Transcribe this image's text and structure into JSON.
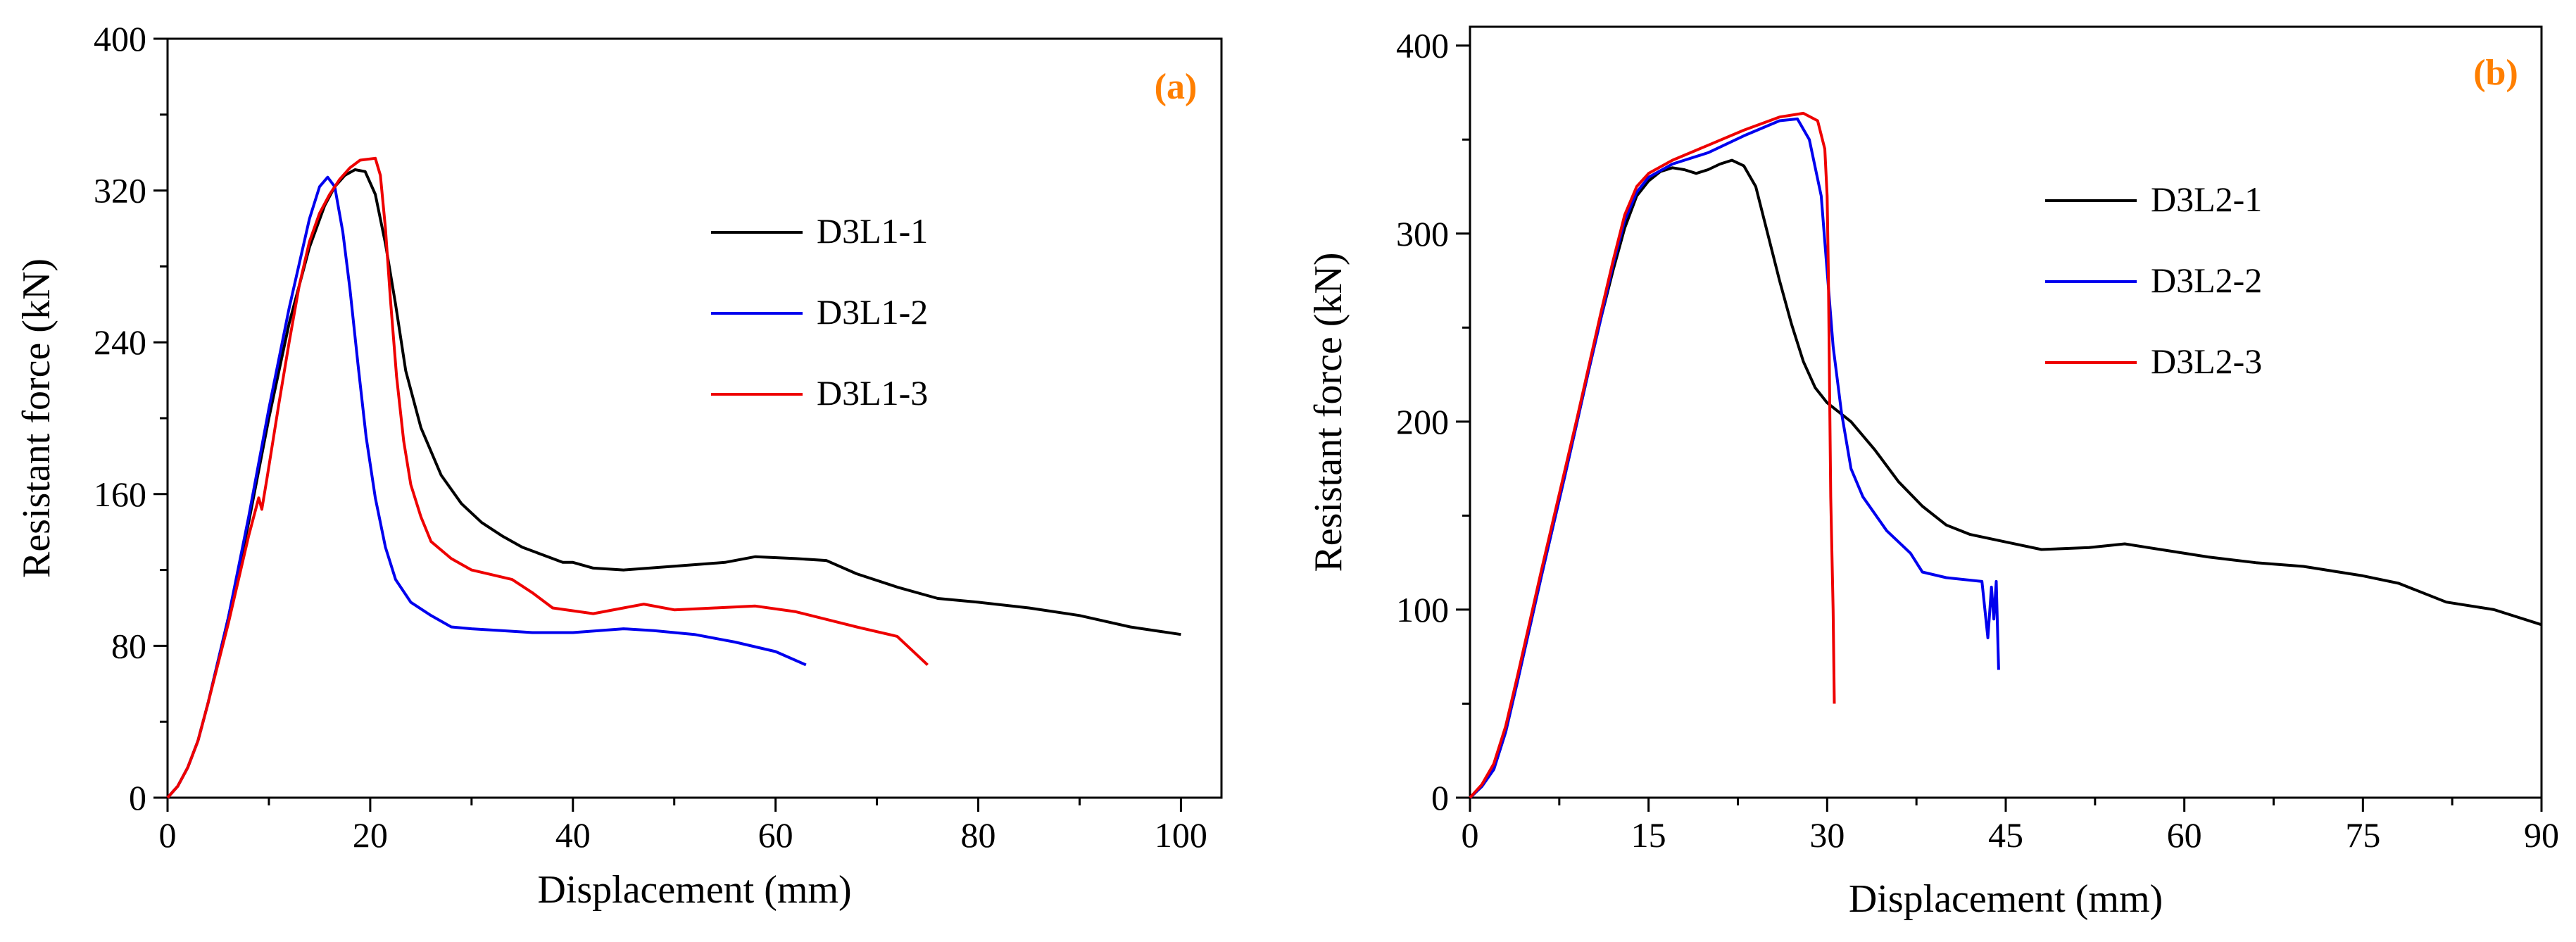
{
  "chart_data": [
    {
      "type": "line",
      "panel_label": "(a)",
      "xlabel": "Displacement (mm)",
      "ylabel": "Resistant force (kN)",
      "xlim": [
        0,
        104
      ],
      "ylim": [
        0,
        400
      ],
      "x_ticks": [
        0,
        20,
        40,
        60,
        80,
        100
      ],
      "y_ticks": [
        0,
        80,
        160,
        240,
        320,
        400
      ],
      "legend_position": "upper-right",
      "series": [
        {
          "name": "D3L1-1",
          "color": "#000000",
          "points": [
            [
              0,
              0
            ],
            [
              1,
              6
            ],
            [
              2,
              16
            ],
            [
              3,
              30
            ],
            [
              4,
              50
            ],
            [
              6,
              95
            ],
            [
              8,
              145
            ],
            [
              10,
              200
            ],
            [
              12,
              250
            ],
            [
              14,
              290
            ],
            [
              15.5,
              312
            ],
            [
              16.5,
              322
            ],
            [
              17.5,
              328
            ],
            [
              18.5,
              331
            ],
            [
              19.5,
              330
            ],
            [
              20.5,
              318
            ],
            [
              21.5,
              292
            ],
            [
              22.5,
              260
            ],
            [
              23.5,
              225
            ],
            [
              25,
              195
            ],
            [
              27,
              170
            ],
            [
              29,
              155
            ],
            [
              31,
              145
            ],
            [
              33,
              138
            ],
            [
              35,
              132
            ],
            [
              37,
              128
            ],
            [
              39,
              124
            ],
            [
              40,
              124
            ],
            [
              42,
              121
            ],
            [
              45,
              120
            ],
            [
              50,
              122
            ],
            [
              55,
              124
            ],
            [
              58,
              127
            ],
            [
              62,
              126
            ],
            [
              65,
              125
            ],
            [
              68,
              118
            ],
            [
              72,
              111
            ],
            [
              76,
              105
            ],
            [
              80,
              103
            ],
            [
              85,
              100
            ],
            [
              90,
              96
            ],
            [
              95,
              90
            ],
            [
              100,
              86
            ]
          ]
        },
        {
          "name": "D3L1-2",
          "color": "#0000ee",
          "points": [
            [
              0,
              0
            ],
            [
              1,
              6
            ],
            [
              2,
              16
            ],
            [
              3,
              30
            ],
            [
              4,
              50
            ],
            [
              6,
              95
            ],
            [
              8,
              148
            ],
            [
              10,
              205
            ],
            [
              12,
              258
            ],
            [
              14,
              305
            ],
            [
              15,
              322
            ],
            [
              15.8,
              327
            ],
            [
              16.5,
              322
            ],
            [
              17.3,
              298
            ],
            [
              18,
              268
            ],
            [
              18.8,
              228
            ],
            [
              19.6,
              190
            ],
            [
              20.5,
              158
            ],
            [
              21.5,
              132
            ],
            [
              22.5,
              115
            ],
            [
              24,
              103
            ],
            [
              26,
              96
            ],
            [
              28,
              90
            ],
            [
              30,
              89
            ],
            [
              33,
              88
            ],
            [
              36,
              87
            ],
            [
              40,
              87
            ],
            [
              45,
              89
            ],
            [
              48,
              88
            ],
            [
              52,
              86
            ],
            [
              56,
              82
            ],
            [
              60,
              77
            ],
            [
              63,
              70
            ]
          ]
        },
        {
          "name": "D3L1-3",
          "color": "#ee0000",
          "points": [
            [
              0,
              0
            ],
            [
              1,
              6
            ],
            [
              2,
              16
            ],
            [
              3,
              30
            ],
            [
              4,
              50
            ],
            [
              6,
              92
            ],
            [
              8,
              138
            ],
            [
              9,
              158
            ],
            [
              9.3,
              152
            ],
            [
              9.8,
              168
            ],
            [
              11,
              208
            ],
            [
              12,
              240
            ],
            [
              13,
              270
            ],
            [
              14,
              293
            ],
            [
              15,
              308
            ],
            [
              16,
              318
            ],
            [
              17,
              326
            ],
            [
              18,
              332
            ],
            [
              19,
              336
            ],
            [
              20.5,
              337
            ],
            [
              21,
              328
            ],
            [
              21.5,
              300
            ],
            [
              22,
              262
            ],
            [
              22.6,
              222
            ],
            [
              23.3,
              188
            ],
            [
              24,
              165
            ],
            [
              25,
              148
            ],
            [
              26,
              135
            ],
            [
              28,
              126
            ],
            [
              30,
              120
            ],
            [
              34,
              115
            ],
            [
              36,
              108
            ],
            [
              38,
              100
            ],
            [
              42,
              97
            ],
            [
              45,
              100
            ],
            [
              47,
              102
            ],
            [
              50,
              99
            ],
            [
              54,
              100
            ],
            [
              58,
              101
            ],
            [
              62,
              98
            ],
            [
              65,
              94
            ],
            [
              68,
              90
            ],
            [
              72,
              85
            ],
            [
              75,
              70
            ]
          ]
        }
      ]
    },
    {
      "type": "line",
      "panel_label": "(b)",
      "xlabel": "Displacement (mm)",
      "ylabel": "Resistant force (kN)",
      "xlim": [
        0,
        90
      ],
      "ylim": [
        0,
        410
      ],
      "x_ticks": [
        0,
        15,
        30,
        45,
        60,
        75,
        90
      ],
      "y_ticks": [
        0,
        100,
        200,
        300,
        400
      ],
      "legend_position": "upper-right",
      "series": [
        {
          "name": "D3L2-1",
          "color": "#000000",
          "points": [
            [
              0,
              0
            ],
            [
              1,
              6
            ],
            [
              2,
              15
            ],
            [
              3,
              35
            ],
            [
              4,
              62
            ],
            [
              5,
              90
            ],
            [
              6,
              118
            ],
            [
              7,
              145
            ],
            [
              8,
              172
            ],
            [
              9,
              200
            ],
            [
              10,
              228
            ],
            [
              11,
              255
            ],
            [
              12,
              280
            ],
            [
              13,
              303
            ],
            [
              14,
              320
            ],
            [
              15,
              328
            ],
            [
              16,
              333
            ],
            [
              17,
              335
            ],
            [
              18,
              334
            ],
            [
              19,
              332
            ],
            [
              20,
              334
            ],
            [
              21,
              337
            ],
            [
              22,
              339
            ],
            [
              23,
              336
            ],
            [
              24,
              325
            ],
            [
              25,
              300
            ],
            [
              26,
              275
            ],
            [
              27,
              252
            ],
            [
              28,
              232
            ],
            [
              29,
              218
            ],
            [
              30,
              210
            ],
            [
              32,
              200
            ],
            [
              34,
              185
            ],
            [
              36,
              168
            ],
            [
              38,
              155
            ],
            [
              40,
              145
            ],
            [
              42,
              140
            ],
            [
              45,
              136
            ],
            [
              48,
              132
            ],
            [
              52,
              133
            ],
            [
              55,
              135
            ],
            [
              58,
              132
            ],
            [
              62,
              128
            ],
            [
              66,
              125
            ],
            [
              70,
              123
            ],
            [
              75,
              118
            ],
            [
              78,
              114
            ],
            [
              82,
              104
            ],
            [
              86,
              100
            ],
            [
              90,
              92
            ]
          ]
        },
        {
          "name": "D3L2-2",
          "color": "#0000ee",
          "points": [
            [
              0,
              0
            ],
            [
              1,
              6
            ],
            [
              2,
              15
            ],
            [
              3,
              35
            ],
            [
              4,
              62
            ],
            [
              5,
              90
            ],
            [
              6,
              118
            ],
            [
              7,
              145
            ],
            [
              8,
              172
            ],
            [
              9,
              200
            ],
            [
              10,
              228
            ],
            [
              11,
              255
            ],
            [
              12,
              283
            ],
            [
              13,
              307
            ],
            [
              14,
              322
            ],
            [
              15,
              330
            ],
            [
              17,
              337
            ],
            [
              20,
              343
            ],
            [
              23,
              352
            ],
            [
              26,
              360
            ],
            [
              27.5,
              361
            ],
            [
              28.5,
              350
            ],
            [
              29.5,
              320
            ],
            [
              30,
              280
            ],
            [
              30.5,
              240
            ],
            [
              31.2,
              205
            ],
            [
              32,
              175
            ],
            [
              33,
              160
            ],
            [
              35,
              142
            ],
            [
              37,
              130
            ],
            [
              38,
              120
            ],
            [
              40,
              117
            ],
            [
              43,
              115
            ],
            [
              43.5,
              85
            ],
            [
              43.8,
              112
            ],
            [
              44,
              95
            ],
            [
              44.2,
              115
            ],
            [
              44.4,
              68
            ]
          ]
        },
        {
          "name": "D3L2-3",
          "color": "#ee0000",
          "points": [
            [
              0,
              0
            ],
            [
              1,
              7
            ],
            [
              2,
              18
            ],
            [
              3,
              38
            ],
            [
              4,
              65
            ],
            [
              5,
              93
            ],
            [
              6,
              121
            ],
            [
              7,
              148
            ],
            [
              8,
              175
            ],
            [
              9,
              202
            ],
            [
              10,
              230
            ],
            [
              11,
              258
            ],
            [
              12,
              285
            ],
            [
              13,
              310
            ],
            [
              14,
              325
            ],
            [
              15,
              332
            ],
            [
              17,
              339
            ],
            [
              20,
              347
            ],
            [
              23,
              355
            ],
            [
              26,
              362
            ],
            [
              28,
              364
            ],
            [
              29.2,
              360
            ],
            [
              29.8,
              345
            ],
            [
              30,
              320
            ],
            [
              30.1,
              280
            ],
            [
              30.2,
              220
            ],
            [
              30.3,
              160
            ],
            [
              30.5,
              100
            ],
            [
              30.6,
              50
            ]
          ]
        }
      ]
    }
  ]
}
